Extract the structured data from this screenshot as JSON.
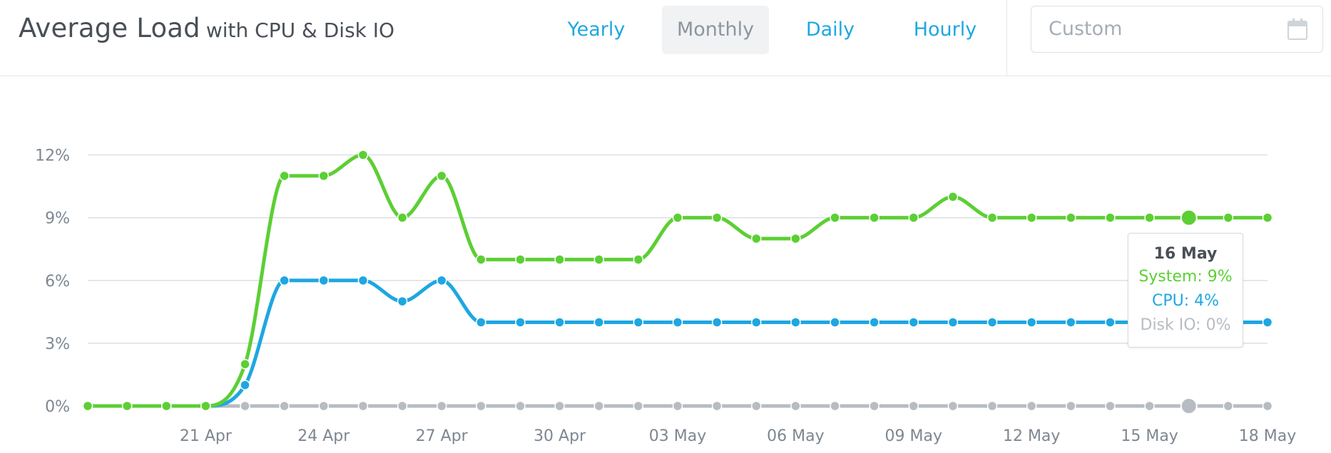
{
  "header": {
    "title": "Average Load",
    "subtitle": "with CPU & Disk IO",
    "ranges": [
      "Yearly",
      "Monthly",
      "Daily",
      "Hourly"
    ],
    "active_range": "Monthly",
    "custom_placeholder": "Custom"
  },
  "chart_data": {
    "type": "line",
    "x": [
      "18 Apr",
      "19 Apr",
      "20 Apr",
      "21 Apr",
      "22 Apr",
      "23 Apr",
      "24 Apr",
      "25 Apr",
      "26 Apr",
      "27 Apr",
      "28 Apr",
      "29 Apr",
      "30 Apr",
      "01 May",
      "02 May",
      "03 May",
      "04 May",
      "05 May",
      "06 May",
      "07 May",
      "08 May",
      "09 May",
      "10 May",
      "11 May",
      "12 May",
      "13 May",
      "14 May",
      "15 May",
      "16 May",
      "17 May",
      "18 May"
    ],
    "x_tick_labels": [
      "21 Apr",
      "24 Apr",
      "27 Apr",
      "30 Apr",
      "03 May",
      "06 May",
      "09 May",
      "12 May",
      "15 May",
      "18 May"
    ],
    "y_ticks": [
      "0%",
      "3%",
      "6%",
      "9%",
      "12%"
    ],
    "ylim": [
      0,
      12
    ],
    "grid": true,
    "series": [
      {
        "name": "System",
        "color": "#5ccf34",
        "values": [
          0,
          0,
          0,
          0,
          2,
          11,
          11,
          12,
          9,
          11,
          7,
          7,
          7,
          7,
          7,
          9,
          9,
          8,
          8,
          9,
          9,
          9,
          10,
          9,
          9,
          9,
          9,
          9,
          9,
          9,
          9
        ]
      },
      {
        "name": "CPU",
        "color": "#1ea7e1",
        "values": [
          0,
          0,
          0,
          0,
          1,
          6,
          6,
          6,
          5,
          6,
          4,
          4,
          4,
          4,
          4,
          4,
          4,
          4,
          4,
          4,
          4,
          4,
          4,
          4,
          4,
          4,
          4,
          4,
          4,
          4,
          4
        ]
      },
      {
        "name": "Disk IO",
        "color": "#b7bcc2",
        "values": [
          0,
          0,
          0,
          0,
          0,
          0,
          0,
          0,
          0,
          0,
          0,
          0,
          0,
          0,
          0,
          0,
          0,
          0,
          0,
          0,
          0,
          0,
          0,
          0,
          0,
          0,
          0,
          0,
          0,
          0,
          0
        ]
      }
    ],
    "highlight_index": 28
  },
  "tooltip": {
    "title": "16 May",
    "system": "System: 9%",
    "cpu": "CPU: 4%",
    "disk": "Disk IO: 0%"
  }
}
